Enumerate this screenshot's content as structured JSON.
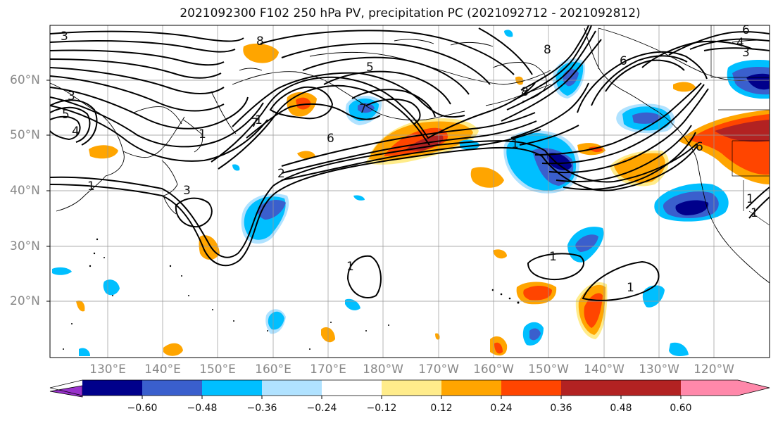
{
  "title": "2021092300 F102 250 hPa PV, precipitation PC (2021092712 - 2021092812)",
  "lat_labels": [
    "60°N",
    "50°N",
    "40°N",
    "30°N",
    "20°N"
  ],
  "lon_labels": [
    "130°E",
    "140°E",
    "150°E",
    "160°E",
    "170°E",
    "180°W",
    "170°W",
    "160°W",
    "150°W",
    "140°W",
    "130°W",
    "120°W"
  ],
  "colorbar": {
    "ticks": [
      "−0.60",
      "−0.48",
      "−0.36",
      "−0.24",
      "−0.12",
      "0.12",
      "0.24",
      "0.36",
      "0.48",
      "0.60"
    ],
    "colors": [
      "#9932cc",
      "#00008b",
      "#3a5fcd",
      "#00bfff",
      "#b0e2ff",
      "#ffffff",
      "#ffec8b",
      "#ffa500",
      "#ff4500",
      "#b22222",
      "#ff88aa"
    ]
  },
  "contour_labels": [
    "3",
    "8",
    "5",
    "3",
    "5",
    "7",
    "6",
    "4",
    "1",
    "7",
    "8",
    "6",
    "2",
    "3",
    "1",
    "1",
    "8",
    "6",
    "4",
    "3",
    "6",
    "1",
    "1",
    "1",
    "1",
    "1",
    "1"
  ]
}
